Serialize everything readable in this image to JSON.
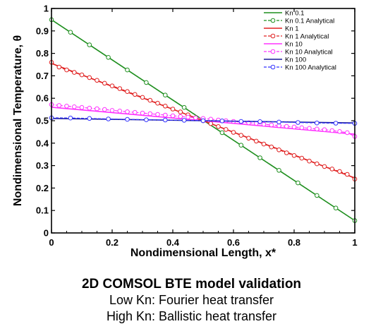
{
  "chart_data": {
    "type": "line",
    "title": "",
    "xlabel": "Nondimensional Length, x*",
    "ylabel": "Nondimensional Temperature, θ",
    "xlim": [
      0,
      1
    ],
    "ylim": [
      0,
      1
    ],
    "xticks": [
      "0",
      "0.2",
      "0.4",
      "0.6",
      "0.8",
      "1"
    ],
    "yticks": [
      "0",
      "0.1",
      "0.2",
      "0.3",
      "0.4",
      "0.5",
      "0.6",
      "0.7",
      "0.8",
      "0.9",
      "1"
    ],
    "legend_position": "top-right",
    "grid": false,
    "series": [
      {
        "name": "Kn 0.1",
        "color": "#1f8f1f",
        "style": "solid",
        "marker": "none",
        "x": [
          0,
          1
        ],
        "y": [
          0.95,
          0.055
        ]
      },
      {
        "name": "Kn 0.1 Analytical",
        "color": "#1f8f1f",
        "style": "dashed",
        "marker": "circle",
        "x": [
          0,
          0.0625,
          0.125,
          0.1875,
          0.25,
          0.3125,
          0.375,
          0.4375,
          0.5,
          0.5625,
          0.625,
          0.6875,
          0.75,
          0.8125,
          0.875,
          0.9375,
          1
        ],
        "y": [
          0.95,
          0.894,
          0.838,
          0.782,
          0.726,
          0.67,
          0.614,
          0.559,
          0.503,
          0.447,
          0.391,
          0.335,
          0.279,
          0.223,
          0.167,
          0.111,
          0.055
        ]
      },
      {
        "name": "Kn 1",
        "color": "#e02020",
        "style": "solid",
        "marker": "none",
        "x": [
          0,
          1
        ],
        "y": [
          0.755,
          0.245
        ]
      },
      {
        "name": "Kn 1 Analytical",
        "color": "#e02020",
        "style": "dashed",
        "marker": "circle",
        "x": [
          0,
          0.025,
          0.05,
          0.075,
          0.1,
          0.125,
          0.15,
          0.175,
          0.2,
          0.225,
          0.25,
          0.275,
          0.3,
          0.325,
          0.35,
          0.375,
          0.4,
          0.425,
          0.45,
          0.475,
          0.5,
          0.525,
          0.55,
          0.575,
          0.6,
          0.625,
          0.65,
          0.675,
          0.7,
          0.725,
          0.75,
          0.775,
          0.8,
          0.825,
          0.85,
          0.875,
          0.9,
          0.925,
          0.95,
          0.975,
          1
        ],
        "y": [
          0.76,
          0.739,
          0.726,
          0.715,
          0.704,
          0.692,
          0.68,
          0.667,
          0.655,
          0.643,
          0.63,
          0.617,
          0.604,
          0.591,
          0.578,
          0.565,
          0.552,
          0.539,
          0.526,
          0.513,
          0.5,
          0.487,
          0.474,
          0.461,
          0.448,
          0.435,
          0.422,
          0.409,
          0.396,
          0.383,
          0.37,
          0.357,
          0.345,
          0.333,
          0.32,
          0.308,
          0.296,
          0.285,
          0.274,
          0.261,
          0.24
        ]
      },
      {
        "name": "Kn 10",
        "color": "#ff33ff",
        "style": "solid",
        "marker": "none",
        "x": [
          0,
          1
        ],
        "y": [
          0.56,
          0.44
        ]
      },
      {
        "name": "Kn 10 Analytical",
        "color": "#ff33ff",
        "style": "dashed",
        "marker": "circle",
        "x": [
          0,
          0.025,
          0.05,
          0.075,
          0.1,
          0.125,
          0.15,
          0.175,
          0.2,
          0.225,
          0.25,
          0.275,
          0.3,
          0.325,
          0.35,
          0.375,
          0.4,
          0.425,
          0.45,
          0.475,
          0.5,
          0.525,
          0.55,
          0.575,
          0.6,
          0.625,
          0.65,
          0.675,
          0.7,
          0.725,
          0.75,
          0.775,
          0.8,
          0.825,
          0.85,
          0.875,
          0.9,
          0.925,
          0.95,
          0.975,
          1
        ],
        "y": [
          0.572,
          0.568,
          0.565,
          0.562,
          0.559,
          0.556,
          0.553,
          0.55,
          0.546,
          0.543,
          0.54,
          0.537,
          0.534,
          0.531,
          0.528,
          0.525,
          0.522,
          0.519,
          0.516,
          0.513,
          0.51,
          0.507,
          0.503,
          0.5,
          0.497,
          0.494,
          0.491,
          0.488,
          0.484,
          0.481,
          0.478,
          0.475,
          0.472,
          0.469,
          0.466,
          0.463,
          0.46,
          0.456,
          0.452,
          0.447,
          0.43
        ]
      },
      {
        "name": "Kn 100",
        "color": "#1a1a99",
        "style": "solid",
        "marker": "none",
        "x": [
          0,
          1
        ],
        "y": [
          0.51,
          0.49
        ]
      },
      {
        "name": "Kn 100 Analytical",
        "color": "#3333ff",
        "style": "dashed",
        "marker": "circle",
        "x": [
          0,
          0.0625,
          0.125,
          0.1875,
          0.25,
          0.3125,
          0.375,
          0.4375,
          0.5,
          0.5625,
          0.625,
          0.6875,
          0.75,
          0.8125,
          0.875,
          0.9375,
          1
        ],
        "y": [
          0.513,
          0.512,
          0.51,
          0.508,
          0.506,
          0.504,
          0.503,
          0.502,
          0.5,
          0.499,
          0.497,
          0.496,
          0.494,
          0.492,
          0.49,
          0.489,
          0.488
        ]
      }
    ]
  },
  "caption": {
    "title": "2D COMSOL BTE model validation",
    "line1": "Low Kn: Fourier heat transfer",
    "line2": "High Kn: Ballistic heat transfer"
  }
}
